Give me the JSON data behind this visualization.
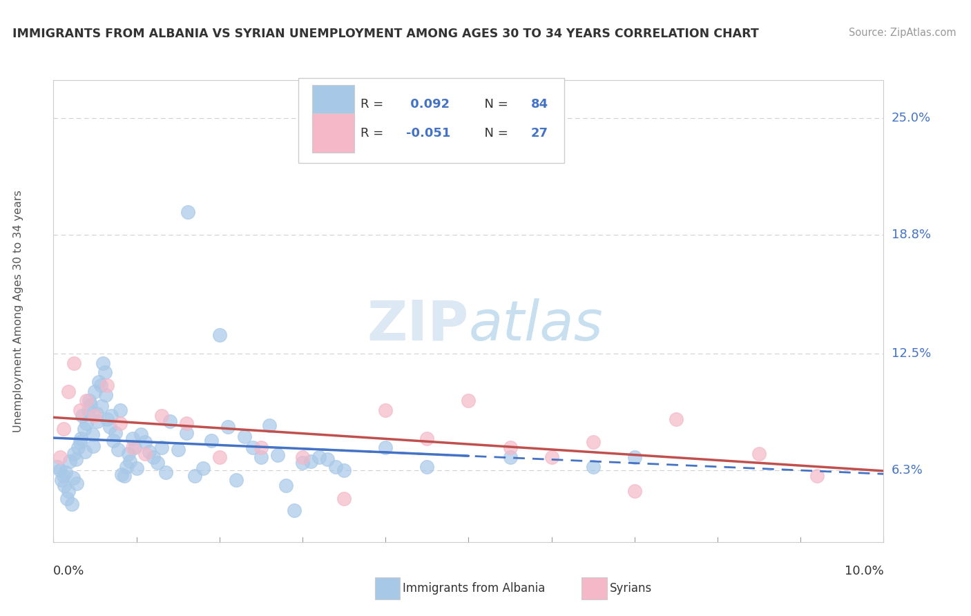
{
  "title": "IMMIGRANTS FROM ALBANIA VS SYRIAN UNEMPLOYMENT AMONG AGES 30 TO 34 YEARS CORRELATION CHART",
  "source": "Source: ZipAtlas.com",
  "ylabel_values": [
    6.3,
    12.5,
    18.8,
    25.0
  ],
  "x_min": 0.0,
  "x_max": 10.0,
  "y_min": 2.5,
  "y_max": 27.0,
  "albania_color": "#a8c8e8",
  "albania_color_line": "#4472c4",
  "syrian_color": "#f4b8c8",
  "syrian_color_line": "#c0504d",
  "albania_R": 0.092,
  "albania_N": 84,
  "syrian_R": -0.051,
  "syrian_N": 27,
  "albania_x": [
    0.05,
    0.08,
    0.1,
    0.12,
    0.13,
    0.15,
    0.16,
    0.18,
    0.2,
    0.22,
    0.24,
    0.25,
    0.27,
    0.28,
    0.3,
    0.32,
    0.33,
    0.35,
    0.37,
    0.38,
    0.4,
    0.42,
    0.43,
    0.45,
    0.47,
    0.48,
    0.5,
    0.52,
    0.53,
    0.55,
    0.57,
    0.58,
    0.6,
    0.62,
    0.63,
    0.65,
    0.68,
    0.7,
    0.72,
    0.75,
    0.78,
    0.8,
    0.82,
    0.85,
    0.88,
    0.9,
    0.92,
    0.95,
    0.98,
    1.0,
    1.05,
    1.1,
    1.15,
    1.2,
    1.25,
    1.3,
    1.35,
    1.4,
    1.5,
    1.6,
    1.7,
    1.8,
    1.9,
    2.0,
    2.1,
    2.2,
    2.3,
    2.4,
    2.5,
    2.6,
    2.7,
    2.8,
    2.9,
    3.0,
    3.1,
    3.2,
    3.3,
    3.4,
    3.5,
    4.0,
    4.5,
    5.5,
    6.5,
    7.0
  ],
  "albania_y": [
    6.5,
    6.3,
    5.8,
    6.0,
    5.5,
    6.2,
    4.8,
    5.2,
    6.8,
    4.5,
    5.9,
    7.2,
    6.9,
    5.6,
    7.5,
    7.8,
    8.0,
    9.2,
    8.5,
    7.3,
    8.8,
    9.5,
    10.0,
    9.8,
    8.2,
    7.6,
    10.5,
    9.3,
    8.9,
    11.0,
    10.8,
    9.7,
    12.0,
    11.5,
    10.3,
    9.0,
    8.6,
    9.2,
    7.9,
    8.3,
    7.4,
    9.5,
    6.1,
    6.0,
    6.5,
    7.2,
    6.8,
    8.0,
    7.5,
    6.4,
    8.2,
    7.8,
    7.3,
    7.0,
    6.7,
    7.5,
    6.2,
    8.9,
    7.4,
    8.3,
    6.0,
    6.4,
    7.9,
    13.5,
    8.6,
    5.8,
    8.1,
    7.5,
    7.0,
    8.7,
    7.1,
    5.5,
    4.2,
    6.7,
    6.8,
    7.0,
    6.9,
    6.5,
    6.3,
    7.5,
    6.5,
    7.0,
    6.5,
    7.0
  ],
  "albania_outlier_x": [
    1.62
  ],
  "albania_outlier_y": [
    20.0
  ],
  "syrian_x": [
    0.08,
    0.12,
    0.18,
    0.25,
    0.32,
    0.4,
    0.5,
    0.65,
    0.8,
    0.95,
    1.1,
    1.3,
    1.6,
    2.0,
    2.5,
    3.0,
    3.5,
    4.0,
    4.5,
    5.0,
    5.5,
    6.0,
    6.5,
    7.0,
    7.5,
    8.5,
    9.2
  ],
  "syrian_y": [
    7.0,
    8.5,
    10.5,
    12.0,
    9.5,
    10.0,
    9.2,
    10.8,
    8.8,
    7.5,
    7.2,
    9.2,
    8.8,
    7.0,
    7.5,
    7.0,
    4.8,
    9.5,
    8.0,
    10.0,
    7.5,
    7.0,
    7.8,
    5.2,
    9.0,
    7.2,
    6.0
  ],
  "grid_color": "#d0d0d0",
  "tick_color": "#4472c4",
  "legend_text_color": "#333333",
  "background_color": "#ffffff",
  "watermark_color": "#dce8f4"
}
